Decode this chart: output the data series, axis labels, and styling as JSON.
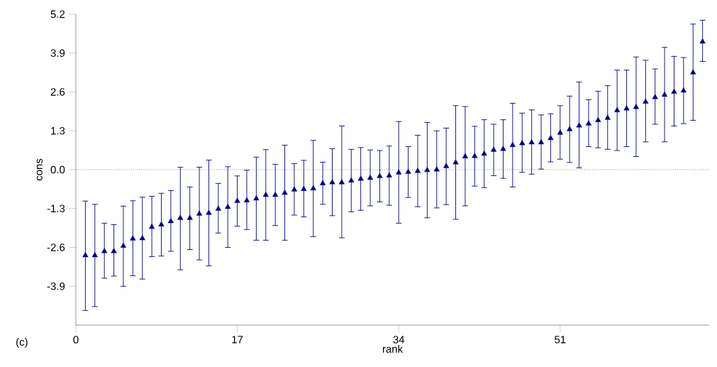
{
  "chart_data": {
    "type": "scatter",
    "xlabel": "rank",
    "ylabel": "cons",
    "annotations": [
      "(c)"
    ],
    "x": [
      1,
      2,
      3,
      4,
      5,
      6,
      7,
      8,
      9,
      10,
      11,
      12,
      13,
      14,
      15,
      16,
      17,
      18,
      19,
      20,
      21,
      22,
      23,
      24,
      25,
      26,
      27,
      28,
      29,
      30,
      31,
      32,
      33,
      34,
      35,
      36,
      37,
      38,
      39,
      40,
      41,
      42,
      43,
      44,
      45,
      46,
      47,
      48,
      49,
      50,
      51,
      52,
      53,
      54,
      55,
      56,
      57,
      58,
      59,
      60,
      61,
      62,
      63,
      64,
      65,
      66
    ],
    "values": [
      -2.87,
      -2.87,
      -2.73,
      -2.73,
      -2.55,
      -2.31,
      -2.3,
      -1.92,
      -1.84,
      -1.73,
      -1.62,
      -1.62,
      -1.48,
      -1.45,
      -1.31,
      -1.25,
      -1.05,
      -1.03,
      -0.97,
      -0.85,
      -0.85,
      -0.78,
      -0.67,
      -0.65,
      -0.63,
      -0.46,
      -0.43,
      -0.43,
      -0.37,
      -0.31,
      -0.28,
      -0.22,
      -0.2,
      -0.1,
      -0.08,
      -0.05,
      -0.02,
      0.0,
      0.11,
      0.24,
      0.44,
      0.45,
      0.53,
      0.66,
      0.69,
      0.82,
      0.88,
      0.91,
      0.91,
      1.05,
      1.23,
      1.35,
      1.47,
      1.54,
      1.65,
      1.73,
      1.98,
      2.04,
      2.09,
      2.27,
      2.42,
      2.5,
      2.6,
      2.64,
      3.25,
      4.28
    ],
    "errors": [
      [
        -4.71,
        -1.05
      ],
      [
        -4.58,
        -1.16
      ],
      [
        -3.63,
        -1.79
      ],
      [
        -3.56,
        -1.84
      ],
      [
        -3.9,
        -1.22
      ],
      [
        -3.55,
        -1.04
      ],
      [
        -3.66,
        -0.92
      ],
      [
        -2.91,
        -0.89
      ],
      [
        -2.89,
        -0.79
      ],
      [
        -2.73,
        -0.7
      ],
      [
        -3.35,
        0.08
      ],
      [
        -2.67,
        -0.58
      ],
      [
        -3.02,
        0.08
      ],
      [
        -3.22,
        0.32
      ],
      [
        -2.12,
        -0.46
      ],
      [
        -2.6,
        0.1
      ],
      [
        -1.89,
        -0.21
      ],
      [
        -2.0,
        -0.02
      ],
      [
        -2.36,
        0.42
      ],
      [
        -2.36,
        0.67
      ],
      [
        -1.87,
        0.18
      ],
      [
        -2.36,
        0.82
      ],
      [
        -1.52,
        0.2
      ],
      [
        -1.58,
        0.31
      ],
      [
        -2.24,
        0.98
      ],
      [
        -1.16,
        0.25
      ],
      [
        -1.54,
        0.7
      ],
      [
        -2.28,
        1.46
      ],
      [
        -1.41,
        0.68
      ],
      [
        -1.36,
        0.74
      ],
      [
        -1.21,
        0.66
      ],
      [
        -1.08,
        0.64
      ],
      [
        -1.19,
        0.79
      ],
      [
        -1.79,
        1.61
      ],
      [
        -0.93,
        0.77
      ],
      [
        -1.24,
        1.15
      ],
      [
        -1.61,
        1.58
      ],
      [
        -1.28,
        1.3
      ],
      [
        -1.17,
        1.39
      ],
      [
        -1.66,
        2.14
      ],
      [
        -1.21,
        2.11
      ],
      [
        -0.55,
        1.45
      ],
      [
        -0.6,
        1.67
      ],
      [
        -0.2,
        1.52
      ],
      [
        -0.29,
        1.67
      ],
      [
        -0.58,
        2.22
      ],
      [
        -0.09,
        1.89
      ],
      [
        -0.15,
        2.0
      ],
      [
        0.02,
        1.83
      ],
      [
        0.26,
        1.87
      ],
      [
        0.35,
        2.14
      ],
      [
        0.24,
        2.46
      ],
      [
        0.06,
        2.93
      ],
      [
        0.77,
        2.34
      ],
      [
        0.73,
        2.62
      ],
      [
        0.68,
        2.81
      ],
      [
        0.64,
        3.33
      ],
      [
        0.77,
        3.33
      ],
      [
        0.44,
        3.77
      ],
      [
        0.93,
        3.66
      ],
      [
        1.52,
        3.37
      ],
      [
        0.93,
        4.09
      ],
      [
        1.46,
        3.79
      ],
      [
        1.54,
        3.75
      ],
      [
        1.65,
        4.87
      ],
      [
        3.62,
        5.0
      ]
    ],
    "color": "#000080",
    "marker": "triangle",
    "xlim": [
      0,
      66.7
    ],
    "xticks": [
      0,
      17,
      34,
      51
    ],
    "ylim": [
      -5.2,
      5.2
    ],
    "yticks": [
      -3.9,
      -2.6,
      -1.3,
      {
        "value": 0,
        "label": "0.0"
      },
      1.3,
      2.6,
      3.9,
      5.2
    ],
    "ref_lines": [
      {
        "axis": "y",
        "value": 0,
        "color": "#555555",
        "line_style": "dotted"
      }
    ]
  }
}
